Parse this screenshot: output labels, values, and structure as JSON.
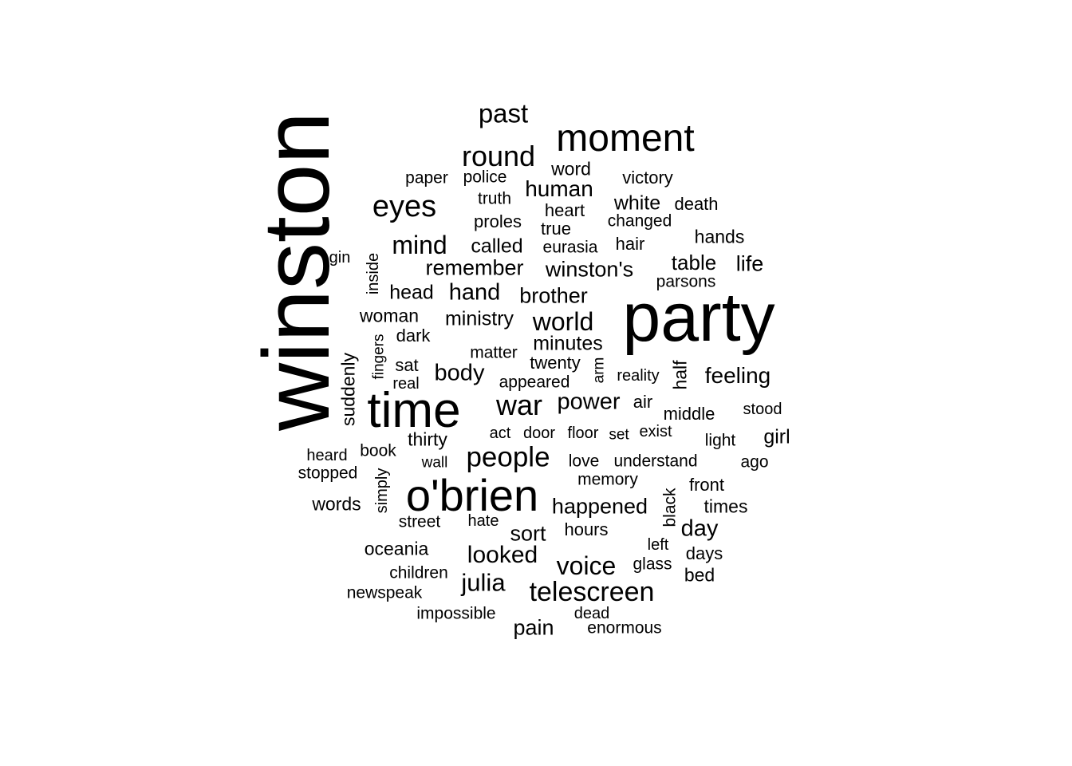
{
  "text_color": "#000000",
  "background_color": "#ffffff",
  "words": [
    {
      "text": "winston",
      "weight": 95,
      "rotated": true
    },
    {
      "text": "party",
      "weight": 80,
      "rotated": false
    },
    {
      "text": "time",
      "weight": 62,
      "rotated": false
    },
    {
      "text": "o'brien",
      "weight": 58,
      "rotated": false
    },
    {
      "text": "moment",
      "weight": 52,
      "rotated": false
    },
    {
      "text": "eyes",
      "weight": 40,
      "rotated": false
    },
    {
      "text": "round",
      "weight": 38,
      "rotated": false
    },
    {
      "text": "war",
      "weight": 38,
      "rotated": false
    },
    {
      "text": "people",
      "weight": 37,
      "rotated": false
    },
    {
      "text": "telescreen",
      "weight": 36,
      "rotated": false
    },
    {
      "text": "past",
      "weight": 35,
      "rotated": false
    },
    {
      "text": "mind",
      "weight": 34,
      "rotated": false
    },
    {
      "text": "world",
      "weight": 34,
      "rotated": false
    },
    {
      "text": "voice",
      "weight": 34,
      "rotated": false
    },
    {
      "text": "looked",
      "weight": 32,
      "rotated": false
    },
    {
      "text": "julia",
      "weight": 33,
      "rotated": false
    },
    {
      "text": "power",
      "weight": 31,
      "rotated": false
    },
    {
      "text": "body",
      "weight": 30,
      "rotated": false
    },
    {
      "text": "hand",
      "weight": 30,
      "rotated": false
    },
    {
      "text": "human",
      "weight": 29,
      "rotated": false
    },
    {
      "text": "day",
      "weight": 30,
      "rotated": false
    },
    {
      "text": "feeling",
      "weight": 29,
      "rotated": false
    },
    {
      "text": "happened",
      "weight": 28,
      "rotated": false
    },
    {
      "text": "sort",
      "weight": 28,
      "rotated": false
    },
    {
      "text": "remember",
      "weight": 28,
      "rotated": false
    },
    {
      "text": "winston's",
      "weight": 28,
      "rotated": false
    },
    {
      "text": "brother",
      "weight": 28,
      "rotated": false
    },
    {
      "text": "life",
      "weight": 28,
      "rotated": false
    },
    {
      "text": "table",
      "weight": 27,
      "rotated": false
    },
    {
      "text": "pain",
      "weight": 28,
      "rotated": false
    },
    {
      "text": "head",
      "weight": 26,
      "rotated": false
    },
    {
      "text": "called",
      "weight": 26,
      "rotated": false
    },
    {
      "text": "ministry",
      "weight": 26,
      "rotated": false
    },
    {
      "text": "white",
      "weight": 26,
      "rotated": false
    },
    {
      "text": "minutes",
      "weight": 26,
      "rotated": false
    },
    {
      "text": "girl",
      "weight": 26,
      "rotated": false
    },
    {
      "text": "word",
      "weight": 24,
      "rotated": false
    },
    {
      "text": "hands",
      "weight": 24,
      "rotated": false
    },
    {
      "text": "times",
      "weight": 24,
      "rotated": false
    },
    {
      "text": "woman",
      "weight": 24,
      "rotated": false
    },
    {
      "text": "thirty",
      "weight": 24,
      "rotated": false
    },
    {
      "text": "oceania",
      "weight": 24,
      "rotated": false
    },
    {
      "text": "half",
      "weight": 24,
      "rotated": true
    },
    {
      "text": "suddenly",
      "weight": 24,
      "rotated": true
    },
    {
      "text": "words",
      "weight": 24,
      "rotated": false
    },
    {
      "text": "bed",
      "weight": 24,
      "rotated": false
    },
    {
      "text": "heart",
      "weight": 23,
      "rotated": false
    },
    {
      "text": "twenty",
      "weight": 23,
      "rotated": false
    },
    {
      "text": "proles",
      "weight": 23,
      "rotated": false
    },
    {
      "text": "dark",
      "weight": 23,
      "rotated": false
    },
    {
      "text": "hours",
      "weight": 23,
      "rotated": false
    },
    {
      "text": "front",
      "weight": 23,
      "rotated": false
    },
    {
      "text": "days",
      "weight": 23,
      "rotated": false
    },
    {
      "text": "air",
      "weight": 23,
      "rotated": false
    },
    {
      "text": "middle",
      "weight": 23,
      "rotated": false
    },
    {
      "text": "victory",
      "weight": 23,
      "rotated": false
    },
    {
      "text": "death",
      "weight": 23,
      "rotated": false
    },
    {
      "text": "hair",
      "weight": 23,
      "rotated": false
    },
    {
      "text": "true",
      "weight": 23,
      "rotated": false
    },
    {
      "text": "sat",
      "weight": 23,
      "rotated": false
    },
    {
      "text": "matter",
      "weight": 22,
      "rotated": false
    },
    {
      "text": "understand",
      "weight": 22,
      "rotated": false
    },
    {
      "text": "light",
      "weight": 22,
      "rotated": false
    },
    {
      "text": "ago",
      "weight": 22,
      "rotated": false
    },
    {
      "text": "paper",
      "weight": 22,
      "rotated": false
    },
    {
      "text": "police",
      "weight": 22,
      "rotated": false
    },
    {
      "text": "truth",
      "weight": 22,
      "rotated": false
    },
    {
      "text": "memory",
      "weight": 22,
      "rotated": false
    },
    {
      "text": "parsons",
      "weight": 22,
      "rotated": false
    },
    {
      "text": "changed",
      "weight": 22,
      "rotated": false
    },
    {
      "text": "eurasia",
      "weight": 22,
      "rotated": false
    },
    {
      "text": "book",
      "weight": 22,
      "rotated": false
    },
    {
      "text": "street",
      "weight": 22,
      "rotated": false
    },
    {
      "text": "glass",
      "weight": 22,
      "rotated": false
    },
    {
      "text": "love",
      "weight": 22,
      "rotated": false
    },
    {
      "text": "black",
      "weight": 22,
      "rotated": true
    },
    {
      "text": "impossible",
      "weight": 22,
      "rotated": false
    },
    {
      "text": "enormous",
      "weight": 22,
      "rotated": false
    },
    {
      "text": "newspeak",
      "weight": 22,
      "rotated": false
    },
    {
      "text": "children",
      "weight": 22,
      "rotated": false
    },
    {
      "text": "stopped",
      "weight": 22,
      "rotated": false
    },
    {
      "text": "appeared",
      "weight": 22,
      "rotated": false
    },
    {
      "text": "stood",
      "weight": 21,
      "rotated": false
    },
    {
      "text": "heard",
      "weight": 21,
      "rotated": false
    },
    {
      "text": "act",
      "weight": 21,
      "rotated": false
    },
    {
      "text": "door",
      "weight": 21,
      "rotated": false
    },
    {
      "text": "floor",
      "weight": 21,
      "rotated": false
    },
    {
      "text": "exist",
      "weight": 21,
      "rotated": false
    },
    {
      "text": "reality",
      "weight": 21,
      "rotated": false
    },
    {
      "text": "real",
      "weight": 21,
      "rotated": false
    },
    {
      "text": "gin",
      "weight": 21,
      "rotated": false
    },
    {
      "text": "inside",
      "weight": 21,
      "rotated": true
    },
    {
      "text": "hate",
      "weight": 21,
      "rotated": false
    },
    {
      "text": "left",
      "weight": 21,
      "rotated": false
    },
    {
      "text": "dead",
      "weight": 21,
      "rotated": false
    },
    {
      "text": "simply",
      "weight": 21,
      "rotated": true
    },
    {
      "text": "set",
      "weight": 20,
      "rotated": false
    },
    {
      "text": "wall",
      "weight": 20,
      "rotated": false
    },
    {
      "text": "arm",
      "weight": 20,
      "rotated": true
    },
    {
      "text": "fingers",
      "weight": 20,
      "rotated": true
    }
  ]
}
